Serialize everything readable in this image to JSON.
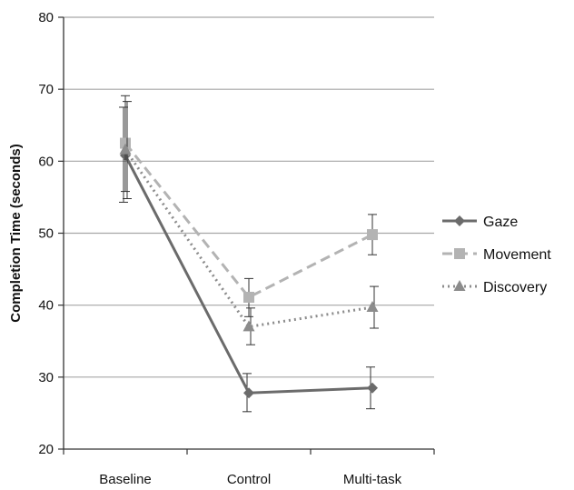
{
  "chart_data": {
    "type": "line",
    "title": "",
    "xlabel": "",
    "ylabel": "Completion Time (seconds)",
    "categories": [
      "Baseline",
      "Control",
      "Multi-task"
    ],
    "ylim": [
      20,
      80
    ],
    "yticks": [
      20,
      30,
      40,
      50,
      60,
      70,
      80
    ],
    "grid": true,
    "legend_position": "right",
    "series": [
      {
        "name": "Gaze",
        "values": [
          60.8,
          27.8,
          28.5
        ],
        "error": [
          [
            54.3,
            67.5
          ],
          [
            25.2,
            30.5
          ],
          [
            25.6,
            31.4
          ]
        ],
        "color": "#6b6b6b",
        "line": "solid",
        "marker": "diamond"
      },
      {
        "name": "Movement",
        "values": [
          62.5,
          41.1,
          49.8
        ],
        "error": [
          [
            55.8,
            69.1
          ],
          [
            38.4,
            43.7
          ],
          [
            47.0,
            52.6
          ]
        ],
        "color": "#b3b3b3",
        "line": "dashed",
        "marker": "square"
      },
      {
        "name": "Discovery",
        "values": [
          61.6,
          37.0,
          39.7
        ],
        "error": [
          [
            54.8,
            68.3
          ],
          [
            34.5,
            39.6
          ],
          [
            36.8,
            42.6
          ]
        ],
        "color": "#8c8c8c",
        "line": "dotted",
        "marker": "triangle"
      }
    ]
  }
}
